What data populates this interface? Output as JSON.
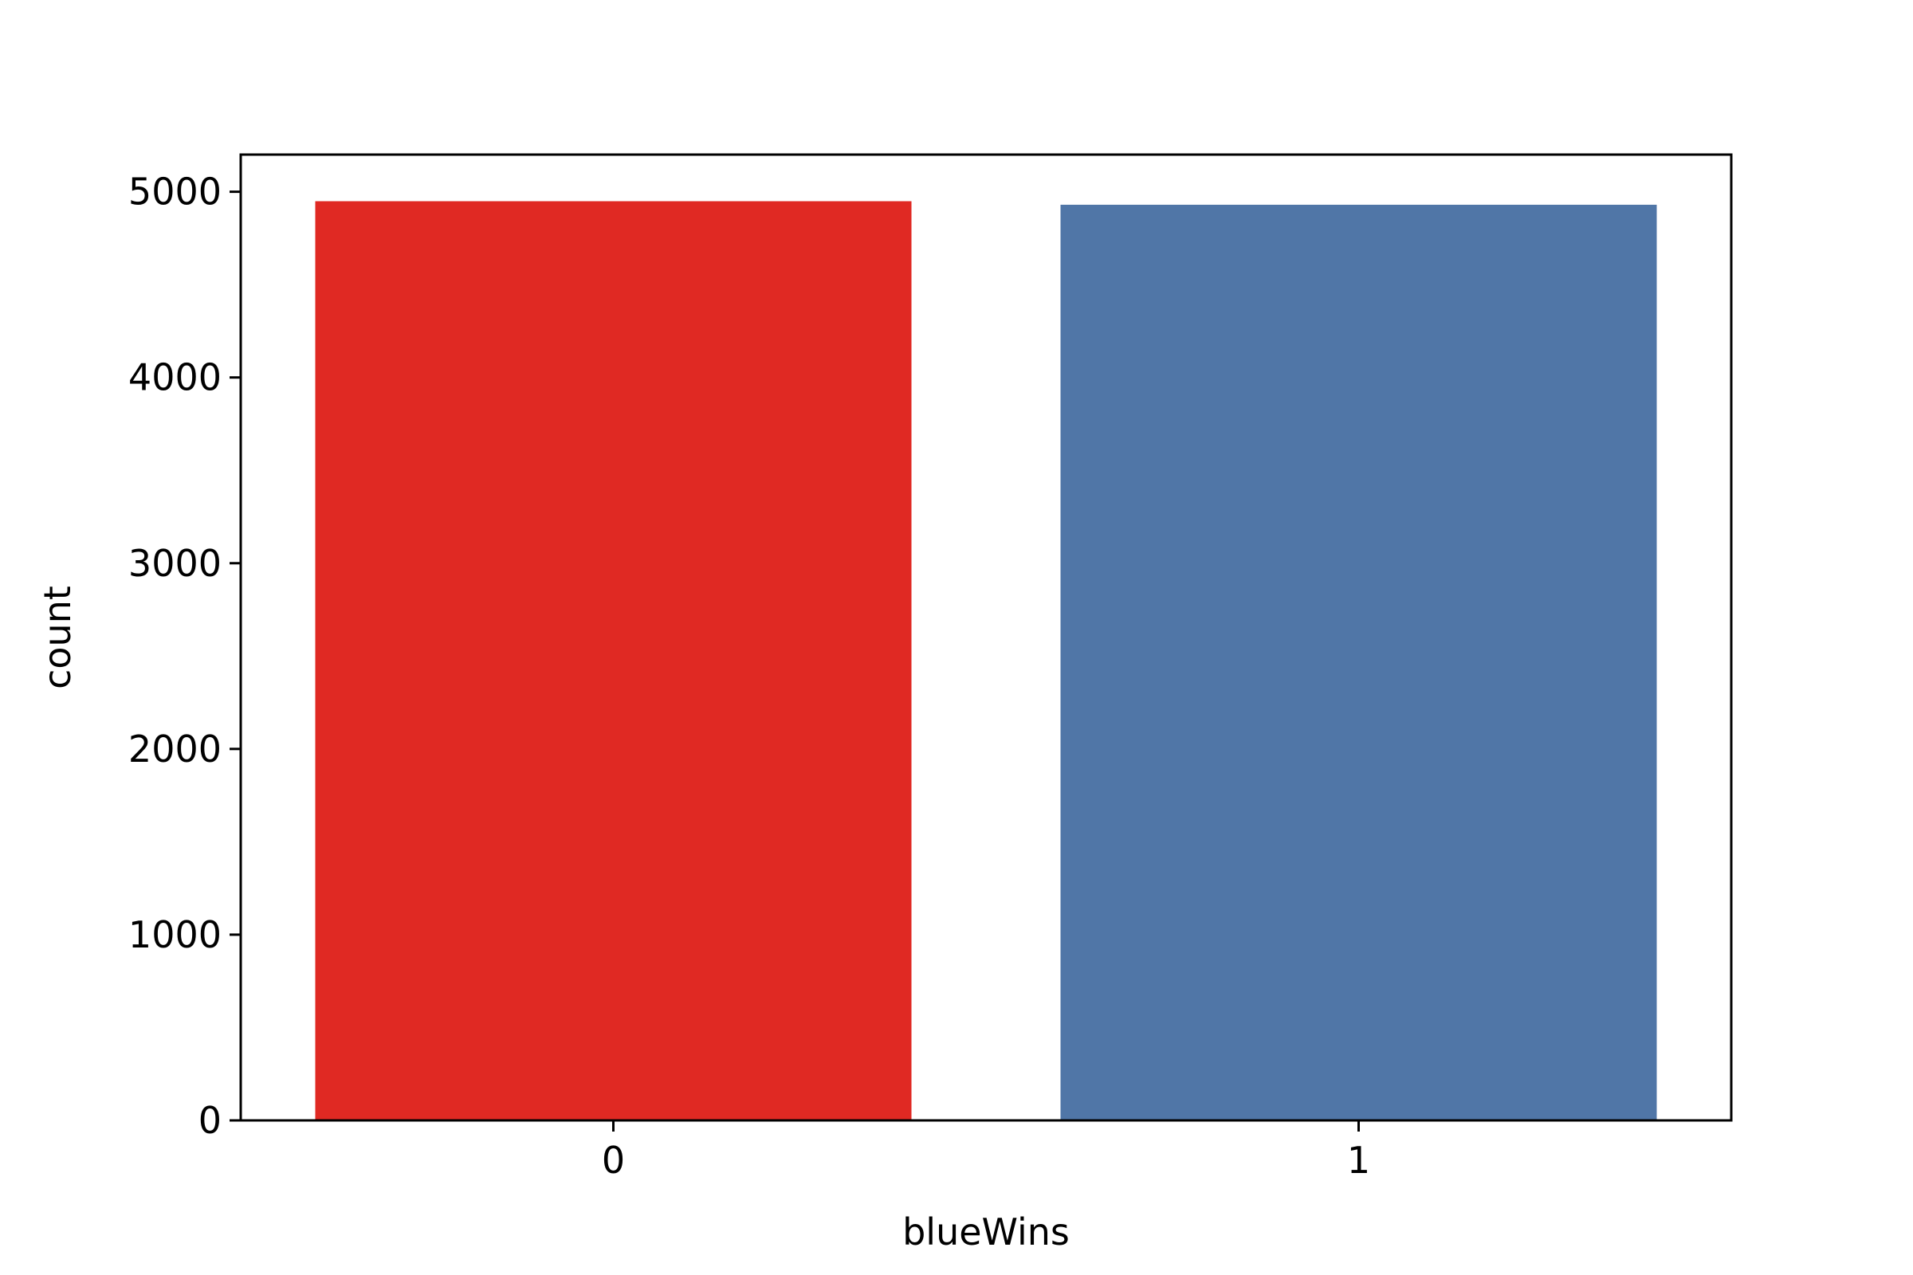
{
  "chart_data": {
    "type": "bar",
    "categories": [
      "0",
      "1"
    ],
    "values": [
      4949,
      4930
    ],
    "colors": [
      "#e02923",
      "#5076a7"
    ],
    "xlabel": "blueWins",
    "ylabel": "count",
    "ylim": [
      0,
      5200
    ],
    "yticks": [
      0,
      1000,
      2000,
      3000,
      4000,
      5000
    ],
    "grid": false,
    "legend": "none"
  }
}
